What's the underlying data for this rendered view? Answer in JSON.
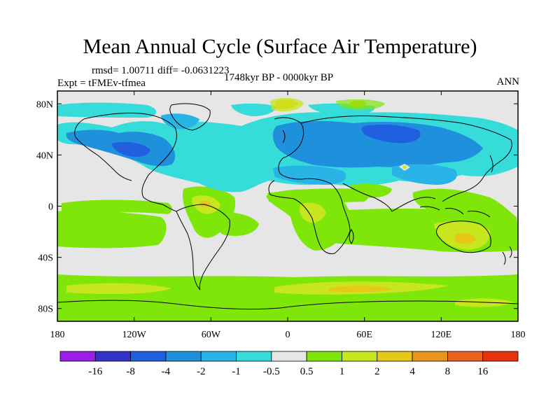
{
  "title": "Mean Annual Cycle (Surface Air Temperature)",
  "stats_line": "rmsd= 1.00711 diff= -0.0631223",
  "experiment": "Expt = tFMEv-tfmea",
  "period": "1748kyr BP - 0000kyr BP",
  "season": "ANN",
  "map": {
    "lat_range": [
      -90,
      90
    ],
    "lon_range": [
      -180,
      180
    ],
    "lat_ticks": [
      {
        "value": 80,
        "label": "80N"
      },
      {
        "value": 40,
        "label": "40N"
      },
      {
        "value": 0,
        "label": "0"
      },
      {
        "value": -40,
        "label": "40S"
      },
      {
        "value": -80,
        "label": "80S"
      }
    ],
    "lon_ticks": [
      {
        "value": -180,
        "label": "180"
      },
      {
        "value": -120,
        "label": "120W"
      },
      {
        "value": -60,
        "label": "60W"
      },
      {
        "value": 0,
        "label": "0"
      },
      {
        "value": 60,
        "label": "60E"
      },
      {
        "value": 120,
        "label": "120E"
      },
      {
        "value": 180,
        "label": "180"
      }
    ]
  },
  "colorbar": {
    "colors": [
      "#9a1fe6",
      "#3232c8",
      "#1f5fe0",
      "#1e90dc",
      "#28b4e6",
      "#35dcd9",
      "#e6e6e6",
      "#7fe60a",
      "#c8e61e",
      "#e6c819",
      "#e6961e",
      "#e6641e",
      "#e6320f"
    ],
    "labels": [
      "-16",
      "-8",
      "-4",
      "-2",
      "-1",
      "-0.5",
      "0.5",
      "1",
      "2",
      "4",
      "8",
      "16"
    ]
  }
}
